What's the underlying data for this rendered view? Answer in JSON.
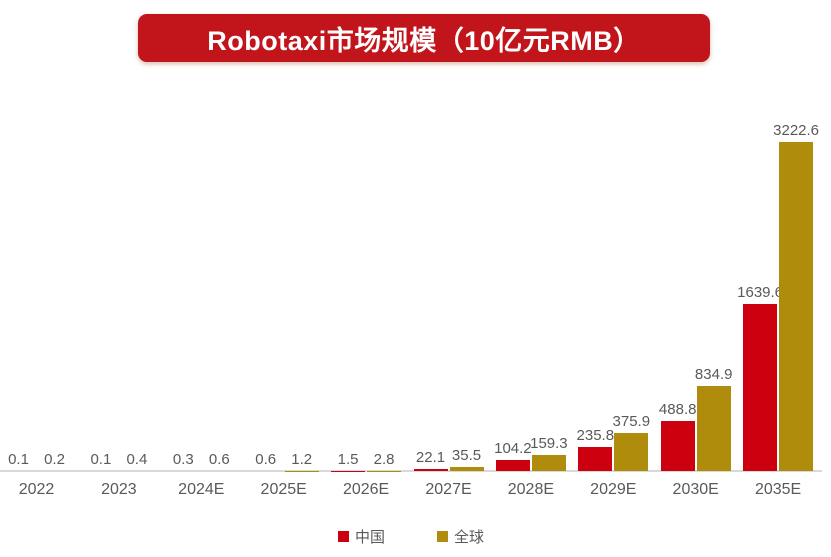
{
  "title": "Robotaxi市场规模（10亿元RMB）",
  "colors": {
    "china": "#CC000F",
    "global": "#AF8C0C",
    "banner": "#C1141B",
    "label_text": "#595959",
    "axis_line": "#D9D9D9",
    "title_text": "#FFFFFF"
  },
  "legend": {
    "items": [
      {
        "label": "中国",
        "color": "#CC000F"
      },
      {
        "label": "全球",
        "color": "#AF8C0C"
      }
    ]
  },
  "chart_data": {
    "type": "bar",
    "title": "Robotaxi市场规模（10亿元RMB）",
    "categories": [
      "2022",
      "2023",
      "2024E",
      "2025E",
      "2026E",
      "2027E",
      "2028E",
      "2029E",
      "2030E",
      "2035E"
    ],
    "series": [
      {
        "name": "中国",
        "color": "#CC000F",
        "values": [
          0.1,
          0.1,
          0.3,
          0.6,
          1.5,
          22.1,
          104.2,
          235.8,
          488.8,
          1639.6
        ]
      },
      {
        "name": "全球",
        "color": "#AF8C0C",
        "values": [
          0.2,
          0.4,
          0.6,
          1.2,
          2.8,
          35.5,
          159.3,
          375.9,
          834.9,
          3222.6
        ]
      }
    ],
    "xlabel": "",
    "ylabel": "",
    "ylim": [
      0,
      3500
    ],
    "grid": false,
    "y_axis_visible": false,
    "data_labels": true,
    "legend_position": "bottom"
  }
}
